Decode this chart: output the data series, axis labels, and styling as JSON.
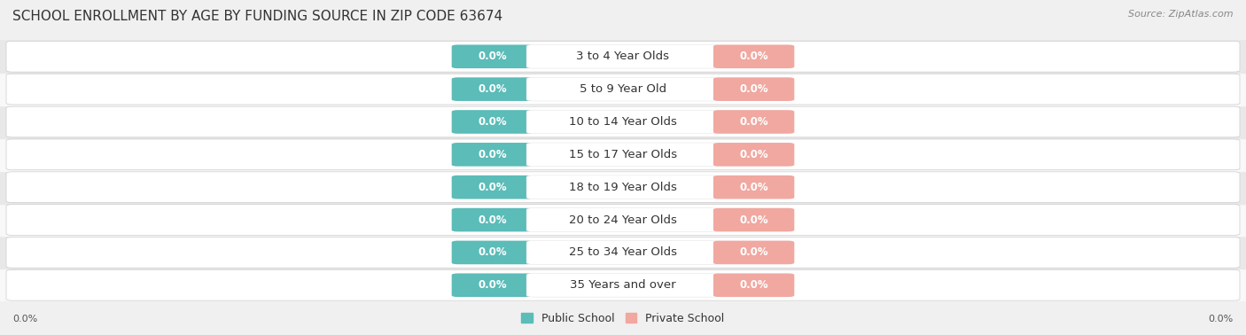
{
  "title": "SCHOOL ENROLLMENT BY AGE BY FUNDING SOURCE IN ZIP CODE 63674",
  "source": "Source: ZipAtlas.com",
  "categories": [
    "3 to 4 Year Olds",
    "5 to 9 Year Old",
    "10 to 14 Year Olds",
    "15 to 17 Year Olds",
    "18 to 19 Year Olds",
    "20 to 24 Year Olds",
    "25 to 34 Year Olds",
    "35 Years and over"
  ],
  "public_values": [
    0.0,
    0.0,
    0.0,
    0.0,
    0.0,
    0.0,
    0.0,
    0.0
  ],
  "private_values": [
    0.0,
    0.0,
    0.0,
    0.0,
    0.0,
    0.0,
    0.0,
    0.0
  ],
  "public_color": "#5bbcb8",
  "private_color": "#f0a8a0",
  "public_label": "Public School",
  "private_label": "Private School",
  "bg_color": "#f0f0f0",
  "row_color_light": "#f8f8f8",
  "row_color_dark": "#e8e8e8",
  "title_fontsize": 11,
  "cat_fontsize": 9.5,
  "value_fontsize": 8.5,
  "source_fontsize": 8
}
